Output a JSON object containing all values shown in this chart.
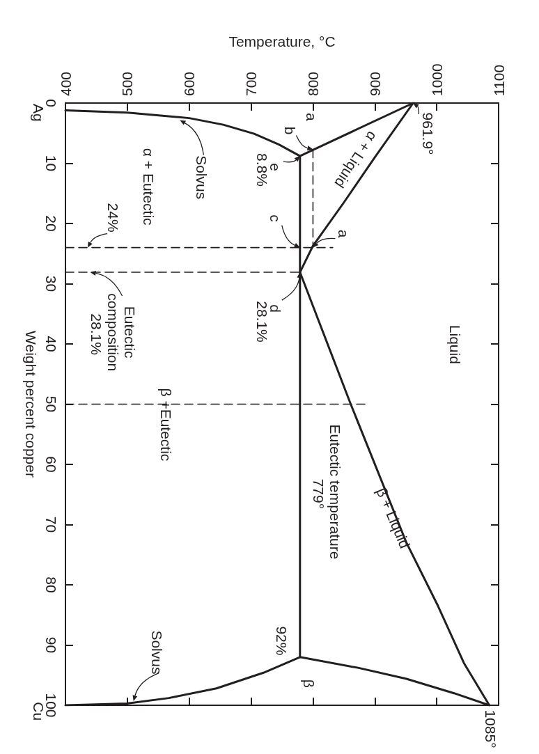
{
  "chart_data": {
    "type": "line",
    "xlabel": "Temperature, °C",
    "ylabel": "Weight percent copper",
    "xlim": [
      400,
      1100
    ],
    "xticks": [
      400,
      500,
      600,
      700,
      800,
      900,
      1000,
      1100
    ],
    "ylim": [
      100,
      0
    ],
    "yticks": [
      0,
      10,
      20,
      30,
      40,
      50,
      60,
      70,
      80,
      90,
      100
    ],
    "grid": false,
    "marker": "none",
    "line_style": "solid",
    "series": [
      {
        "color": "#231f20",
        "x": [
          961.9,
          779
        ],
        "values": [
          0,
          8.8
        ]
      },
      {
        "color": "#231f20",
        "x": [
          961.9,
          900,
          850,
          800,
          779
        ],
        "values": [
          0,
          9,
          16.5,
          23.7,
          28.1
        ]
      },
      {
        "color": "#231f20",
        "x": [
          400,
          500,
          600,
          655,
          705,
          745,
          779
        ],
        "values": [
          1.2,
          1.6,
          2.5,
          3.6,
          5.1,
          6.9,
          8.8
        ]
      },
      {
        "color": "#231f20",
        "x": [
          779,
          779
        ],
        "values": [
          8.8,
          92
        ]
      },
      {
        "color": "#231f20",
        "x": [
          779,
          861,
          951,
          1002,
          1044,
          1085
        ],
        "values": [
          28.1,
          50,
          73,
          83.5,
          93,
          100
        ]
      },
      {
        "color": "#231f20",
        "x": [
          779,
          874,
          951,
          1028,
          1085
        ],
        "values": [
          92,
          93.8,
          95.6,
          98,
          100
        ]
      },
      {
        "color": "#231f20",
        "x": [
          779,
          720,
          644,
          567,
          499,
          400
        ],
        "values": [
          92,
          94.6,
          97.2,
          98.8,
          99.7,
          100
        ]
      },
      {
        "color": "#231f20",
        "line_style": "dashed",
        "x": [
          400,
          832
        ],
        "values": [
          24,
          24
        ]
      },
      {
        "color": "#231f20",
        "line_style": "dashed",
        "x": [
          400,
          779
        ],
        "values": [
          28.1,
          28.1
        ]
      },
      {
        "color": "#231f20",
        "line_style": "dashed",
        "x": [
          400,
          886
        ],
        "values": [
          50,
          50
        ]
      },
      {
        "color": "#231f20",
        "line_style": "dashed",
        "x": [
          800,
          800
        ],
        "values": [
          7.7,
          24
        ]
      }
    ],
    "annotations": [
      {
        "text": "961.9°",
        "x": 961.9,
        "y": 0
      },
      {
        "text": "1085°",
        "x": 1085,
        "y": 100
      },
      "a",
      {
        "text": "b",
        "x": 800,
        "y": 7.7
      },
      {
        "text": "e",
        "x": 779,
        "y": 8.8
      },
      "8.8%",
      {
        "text": "c",
        "x": 779,
        "y": 24
      },
      {
        "text": "a",
        "x": 800,
        "y": 24
      },
      {
        "text": "d",
        "x": 779,
        "y": 28.1
      },
      "28.1%",
      {
        "text": "24%",
        "x": 436,
        "y": 24
      },
      {
        "text": "Eutectic composition 28.1%",
        "x": 440,
        "y": 28.1
      },
      {
        "text": "Solvus",
        "x": 585,
        "y": 2.85
      },
      "α + Eutectic",
      "α + Liquid",
      "Liquid",
      "β +Eutectic",
      "Eutectic temperature 779°",
      "β + Liquid",
      "92%",
      "β",
      {
        "text": "Solvus",
        "x": 510,
        "y": 99.3
      },
      "Ag",
      "Cu"
    ]
  }
}
